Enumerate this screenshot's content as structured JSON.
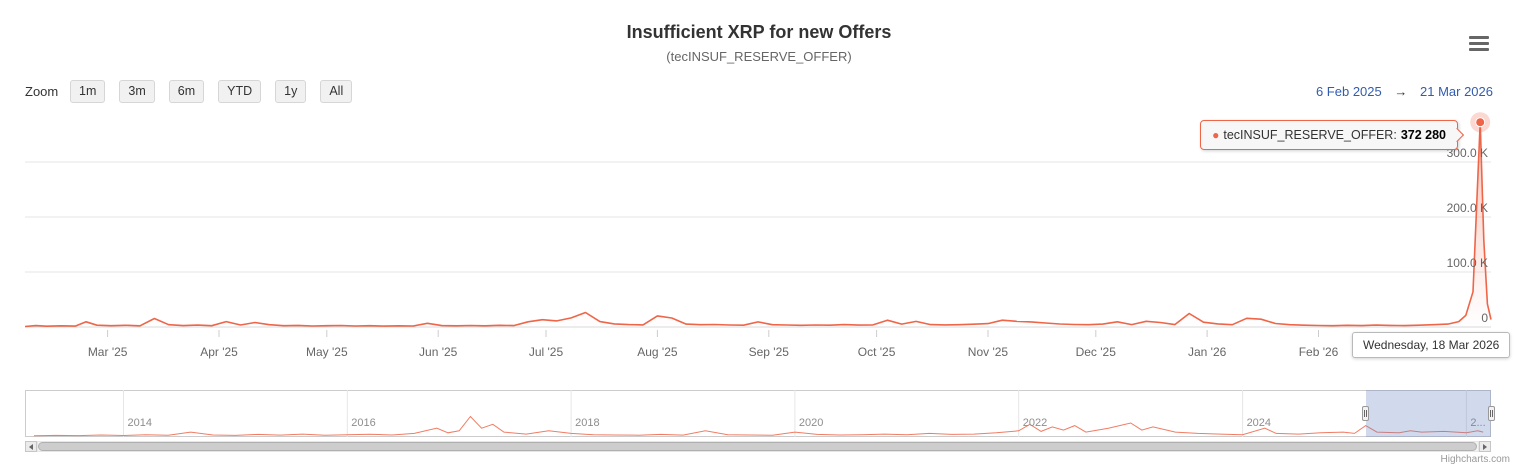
{
  "header": {
    "title": "Insufficient XRP for new Offers",
    "subtitle": "(tecINSUF_RESERVE_OFFER)"
  },
  "range_selector": {
    "zoom_label": "Zoom",
    "buttons": [
      "1m",
      "3m",
      "6m",
      "YTD",
      "1y",
      "All"
    ],
    "from_date": "6 Feb 2025",
    "arrow": "→",
    "to_date": "21 Mar 2026"
  },
  "tooltip": {
    "series_label": "tecINSUF_RESERVE_OFFER:",
    "value": "372 280"
  },
  "xaxis_label": {
    "text": "Wednesday, 18 Mar 2026"
  },
  "credits": {
    "text": "Highcharts.com"
  },
  "icons": {
    "export_menu": "hamburger-icon",
    "marker": "point-marker"
  },
  "colors": {
    "series": "#ef6548",
    "accent_blue": "#335cad",
    "grid": "#e6e6e6",
    "mask": "rgba(102,133,194,0.3)"
  },
  "chart_data": {
    "type": "line",
    "title": "Insufficient XRP for new Offers",
    "subtitle": "(tecINSUF_RESERVE_OFFER)",
    "series_name": "tecINSUF_RESERVE_OFFER",
    "x_axis_type": "datetime",
    "legend": "off",
    "grid": "on",
    "main": {
      "x_range": [
        "2025-02-06",
        "2026-03-21"
      ],
      "y_ticks": [
        {
          "value": 0,
          "label": "0"
        },
        {
          "value": 100000,
          "label": "100.0 K"
        },
        {
          "value": 200000,
          "label": "200.0 K"
        },
        {
          "value": 300000,
          "label": "300.0 K"
        }
      ],
      "x_ticks": [
        {
          "date": "2025-03-01",
          "label": "Mar '25"
        },
        {
          "date": "2025-04-01",
          "label": "Apr '25"
        },
        {
          "date": "2025-05-01",
          "label": "May '25"
        },
        {
          "date": "2025-06-01",
          "label": "Jun '25"
        },
        {
          "date": "2025-07-01",
          "label": "Jul '25"
        },
        {
          "date": "2025-08-01",
          "label": "Aug '25"
        },
        {
          "date": "2025-09-01",
          "label": "Sep '25"
        },
        {
          "date": "2025-10-01",
          "label": "Oct '25"
        },
        {
          "date": "2025-11-01",
          "label": "Nov '25"
        },
        {
          "date": "2025-12-01",
          "label": "Dec '25"
        },
        {
          "date": "2026-01-01",
          "label": "Jan '26"
        },
        {
          "date": "2026-02-01",
          "label": "Feb '26"
        }
      ],
      "highlight_point": {
        "date": "2026-03-18",
        "value": 372280
      },
      "points": [
        [
          "2025-02-06",
          900
        ],
        [
          "2025-02-09",
          2600
        ],
        [
          "2025-02-12",
          1400
        ],
        [
          "2025-02-16",
          2200
        ],
        [
          "2025-02-20",
          1600
        ],
        [
          "2025-02-23",
          9500
        ],
        [
          "2025-02-26",
          3200
        ],
        [
          "2025-03-02",
          2400
        ],
        [
          "2025-03-06",
          3100
        ],
        [
          "2025-03-10",
          2200
        ],
        [
          "2025-03-14",
          15500
        ],
        [
          "2025-03-18",
          4200
        ],
        [
          "2025-03-22",
          2600
        ],
        [
          "2025-03-26",
          3400
        ],
        [
          "2025-03-30",
          2300
        ],
        [
          "2025-04-03",
          9800
        ],
        [
          "2025-04-07",
          3600
        ],
        [
          "2025-04-11",
          8200
        ],
        [
          "2025-04-15",
          4100
        ],
        [
          "2025-04-19",
          2400
        ],
        [
          "2025-04-23",
          2900
        ],
        [
          "2025-04-27",
          1800
        ],
        [
          "2025-05-01",
          2300
        ],
        [
          "2025-05-05",
          2700
        ],
        [
          "2025-05-09",
          1900
        ],
        [
          "2025-05-13",
          2400
        ],
        [
          "2025-05-17",
          1700
        ],
        [
          "2025-05-21",
          2200
        ],
        [
          "2025-05-25",
          1800
        ],
        [
          "2025-05-29",
          6800
        ],
        [
          "2025-06-02",
          2600
        ],
        [
          "2025-06-06",
          2100
        ],
        [
          "2025-06-10",
          2800
        ],
        [
          "2025-06-14",
          2200
        ],
        [
          "2025-06-18",
          3100
        ],
        [
          "2025-06-22",
          2500
        ],
        [
          "2025-06-26",
          9400
        ],
        [
          "2025-06-30",
          13200
        ],
        [
          "2025-07-04",
          11000
        ],
        [
          "2025-07-08",
          16500
        ],
        [
          "2025-07-12",
          26300
        ],
        [
          "2025-07-16",
          9800
        ],
        [
          "2025-07-20",
          5600
        ],
        [
          "2025-07-24",
          4300
        ],
        [
          "2025-07-28",
          3800
        ],
        [
          "2025-08-01",
          20100
        ],
        [
          "2025-08-05",
          16400
        ],
        [
          "2025-08-09",
          5200
        ],
        [
          "2025-08-13",
          4100
        ],
        [
          "2025-08-17",
          4600
        ],
        [
          "2025-08-21",
          3700
        ],
        [
          "2025-08-25",
          3200
        ],
        [
          "2025-08-29",
          9300
        ],
        [
          "2025-09-02",
          4200
        ],
        [
          "2025-09-06",
          3600
        ],
        [
          "2025-09-10",
          3100
        ],
        [
          "2025-09-14",
          3700
        ],
        [
          "2025-09-18",
          3200
        ],
        [
          "2025-09-22",
          4300
        ],
        [
          "2025-09-26",
          3500
        ],
        [
          "2025-09-30",
          3900
        ],
        [
          "2025-10-04",
          12400
        ],
        [
          "2025-10-08",
          5300
        ],
        [
          "2025-10-12",
          10100
        ],
        [
          "2025-10-16",
          4400
        ],
        [
          "2025-10-20",
          3800
        ],
        [
          "2025-10-24",
          4200
        ],
        [
          "2025-10-28",
          5100
        ],
        [
          "2025-11-01",
          6200
        ],
        [
          "2025-11-05",
          12300
        ],
        [
          "2025-11-09",
          10400
        ],
        [
          "2025-11-13",
          9200
        ],
        [
          "2025-11-17",
          7300
        ],
        [
          "2025-11-21",
          5400
        ],
        [
          "2025-11-25",
          4600
        ],
        [
          "2025-11-29",
          4100
        ],
        [
          "2025-12-03",
          5200
        ],
        [
          "2025-12-07",
          9400
        ],
        [
          "2025-12-11",
          4300
        ],
        [
          "2025-12-15",
          10300
        ],
        [
          "2025-12-19",
          8200
        ],
        [
          "2025-12-23",
          4400
        ],
        [
          "2025-12-27",
          24600
        ],
        [
          "2025-12-31",
          8800
        ],
        [
          "2026-01-04",
          5600
        ],
        [
          "2026-01-08",
          4200
        ],
        [
          "2026-01-12",
          15800
        ],
        [
          "2026-01-16",
          14100
        ],
        [
          "2026-01-20",
          6300
        ],
        [
          "2026-01-24",
          4200
        ],
        [
          "2026-01-28",
          3300
        ],
        [
          "2026-02-01",
          2800
        ],
        [
          "2026-02-05",
          2400
        ],
        [
          "2026-02-09",
          3100
        ],
        [
          "2026-02-13",
          2600
        ],
        [
          "2026-02-17",
          3400
        ],
        [
          "2026-02-21",
          2900
        ],
        [
          "2026-02-25",
          2500
        ],
        [
          "2026-03-01",
          3200
        ],
        [
          "2026-03-05",
          4100
        ],
        [
          "2026-03-09",
          5300
        ],
        [
          "2026-03-12",
          9800
        ],
        [
          "2026-03-14",
          21000
        ],
        [
          "2026-03-16",
          64000
        ],
        [
          "2026-03-18",
          372280
        ],
        [
          "2026-03-19",
          158000
        ],
        [
          "2026-03-20",
          42000
        ],
        [
          "2026-03-21",
          13500
        ]
      ]
    },
    "navigator": {
      "x_range": [
        2013.12,
        2026.22
      ],
      "year_ticks": [
        {
          "year": 2014,
          "label": "2014"
        },
        {
          "year": 2016,
          "label": "2016"
        },
        {
          "year": 2018,
          "label": "2018"
        },
        {
          "year": 2020,
          "label": "2020"
        },
        {
          "year": 2022,
          "label": "2022"
        },
        {
          "year": 2024,
          "label": "2024"
        },
        {
          "year": 2026,
          "label": "2..."
        }
      ],
      "selected_range": [
        2025.1,
        2026.22
      ],
      "points": [
        [
          2013.2,
          2000
        ],
        [
          2013.4,
          5000
        ],
        [
          2013.6,
          3000
        ],
        [
          2013.8,
          8000
        ],
        [
          2014.0,
          4000
        ],
        [
          2014.2,
          10000
        ],
        [
          2014.4,
          6000
        ],
        [
          2014.6,
          30000
        ],
        [
          2014.8,
          8000
        ],
        [
          2015.0,
          5000
        ],
        [
          2015.2,
          12000
        ],
        [
          2015.4,
          7000
        ],
        [
          2015.6,
          15000
        ],
        [
          2015.8,
          6000
        ],
        [
          2016.0,
          9000
        ],
        [
          2016.2,
          14000
        ],
        [
          2016.4,
          8000
        ],
        [
          2016.6,
          20000
        ],
        [
          2016.8,
          60000
        ],
        [
          2016.9,
          25000
        ],
        [
          2017.0,
          40000
        ],
        [
          2017.1,
          150000
        ],
        [
          2017.2,
          60000
        ],
        [
          2017.3,
          90000
        ],
        [
          2017.4,
          30000
        ],
        [
          2017.6,
          15000
        ],
        [
          2017.8,
          40000
        ],
        [
          2018.0,
          20000
        ],
        [
          2018.2,
          10000
        ],
        [
          2018.4,
          8000
        ],
        [
          2018.6,
          6000
        ],
        [
          2018.8,
          12000
        ],
        [
          2019.0,
          7000
        ],
        [
          2019.2,
          40000
        ],
        [
          2019.4,
          10000
        ],
        [
          2019.6,
          8000
        ],
        [
          2019.8,
          6000
        ],
        [
          2020.0,
          30000
        ],
        [
          2020.2,
          12000
        ],
        [
          2020.4,
          8000
        ],
        [
          2020.6,
          10000
        ],
        [
          2020.8,
          15000
        ],
        [
          2021.0,
          10000
        ],
        [
          2021.2,
          20000
        ],
        [
          2021.4,
          12000
        ],
        [
          2021.6,
          15000
        ],
        [
          2021.8,
          25000
        ],
        [
          2022.0,
          40000
        ],
        [
          2022.1,
          90000
        ],
        [
          2022.2,
          35000
        ],
        [
          2022.3,
          70000
        ],
        [
          2022.4,
          45000
        ],
        [
          2022.5,
          80000
        ],
        [
          2022.6,
          30000
        ],
        [
          2022.8,
          60000
        ],
        [
          2023.0,
          100000
        ],
        [
          2023.1,
          45000
        ],
        [
          2023.2,
          70000
        ],
        [
          2023.4,
          30000
        ],
        [
          2023.6,
          20000
        ],
        [
          2023.8,
          15000
        ],
        [
          2024.0,
          10000
        ],
        [
          2024.2,
          60000
        ],
        [
          2024.3,
          20000
        ],
        [
          2024.5,
          15000
        ],
        [
          2024.7,
          25000
        ],
        [
          2024.9,
          30000
        ],
        [
          2025.0,
          20000
        ],
        [
          2025.1,
          80000
        ],
        [
          2025.2,
          30000
        ],
        [
          2025.4,
          25000
        ],
        [
          2025.5,
          40000
        ],
        [
          2025.6,
          30000
        ],
        [
          2025.8,
          35000
        ],
        [
          2026.0,
          25000
        ],
        [
          2026.1,
          40000
        ],
        [
          2026.15,
          30000
        ]
      ]
    }
  }
}
